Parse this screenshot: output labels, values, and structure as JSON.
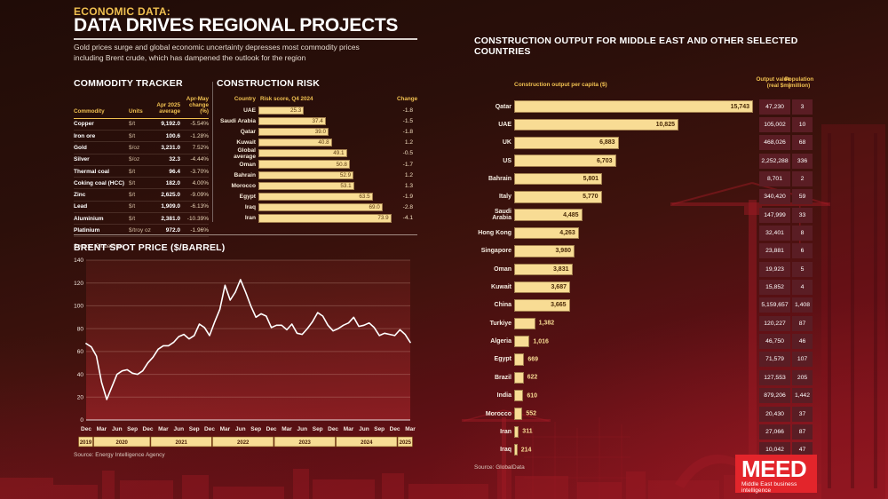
{
  "page": {
    "kicker": "ECONOMIC DATA:",
    "title": "DATA DRIVES REGIONAL PROJECTS",
    "subtitle": "Gold prices surge and global economic uncertainty depresses most commodity prices including Brent crude, which has dampened the outlook for the region"
  },
  "commodity": {
    "title": "COMMODITY TRACKER",
    "columns": [
      "Commodity",
      "Units",
      "Apr 2025\naverage",
      "Apr-May\nchange\n(%)"
    ],
    "rows": [
      [
        "Copper",
        "$/t",
        "9,192.0",
        "-5.54%"
      ],
      [
        "Iron ore",
        "$/t",
        "100.6",
        "-1.28%"
      ],
      [
        "Gold",
        "$/oz",
        "3,231.0",
        "7.52%"
      ],
      [
        "Silver",
        "$/oz",
        "32.3",
        "-4.44%"
      ],
      [
        "Thermal coal",
        "$/t",
        "96.4",
        "-3.70%"
      ],
      [
        "Coking coal (HCC)",
        "$/t",
        "182.0",
        "4.00%"
      ],
      [
        "Zinc",
        "$/t",
        "2,625.0",
        "-9.09%"
      ],
      [
        "Lead",
        "$/t",
        "1,909.0",
        "-6.13%"
      ],
      [
        "Aluminium",
        "$/t",
        "2,381.0",
        "-10.39%"
      ],
      [
        "Platinium",
        "$/troy oz",
        "972.0",
        "-1.96%"
      ]
    ],
    "source": "Source: GlobalData"
  },
  "chart_data": [
    {
      "id": "construction_risk",
      "type": "bar",
      "orientation": "horizontal",
      "title": "CONSTRUCTION RISK",
      "col_country": "Country",
      "col_score": "Risk score, Q4 2024",
      "col_change": "Change",
      "categories": [
        "UAE",
        "Saudi Arabia",
        "Qatar",
        "Kuwait",
        "Global average",
        "Oman",
        "Bahrain",
        "Morocco",
        "Egypt",
        "Iraq",
        "Iran"
      ],
      "values": [
        25.3,
        37.4,
        39.0,
        40.8,
        49.1,
        50.8,
        52.9,
        53.1,
        63.5,
        69.0,
        73.9
      ],
      "value_labels": [
        "25.3",
        "37.4",
        "39.0",
        "40.8",
        "49.1",
        "50.8",
        "52.9",
        "53.1",
        "63.5",
        "69.0",
        "73.9"
      ],
      "change": [
        -1.8,
        -1.5,
        -1.8,
        1.2,
        -0.5,
        -1.7,
        1.2,
        1.3,
        -1.9,
        -2.8,
        -4.1
      ],
      "change_labels": [
        "-1.8",
        "-1.5",
        "-1.8",
        "1.2",
        "-0.5",
        "-1.7",
        "1.2",
        "1.3",
        "-1.9",
        "-2.8",
        "-4.1"
      ],
      "xlim": [
        0,
        76
      ]
    },
    {
      "id": "brent_spot_price",
      "type": "line",
      "title": "BRENT SPOT PRICE ($/BARREL)",
      "ylim": [
        0,
        140
      ],
      "yticks": [
        "0",
        "20",
        "40",
        "60",
        "80",
        "100",
        "120",
        "140"
      ],
      "x_range": "Dec 2019 - Mar 2025 (monthly)",
      "month_tick_labels": [
        "Dec",
        "Mar",
        "Jun",
        "Sep",
        "Dec",
        "Mar",
        "Jun",
        "Sep",
        "Dec",
        "Mar",
        "Jun",
        "Sep",
        "Dec",
        "Mar",
        "Jun",
        "Sep",
        "Dec",
        "Mar",
        "Jun",
        "Sep",
        "Dec",
        "Mar"
      ],
      "year_bands": [
        "2019",
        "2020",
        "2021",
        "2022",
        "2023",
        "2024",
        "2025"
      ],
      "values": [
        67,
        64,
        56,
        33,
        18,
        29,
        40,
        43,
        44,
        41,
        40,
        43,
        50,
        55,
        62,
        65,
        65,
        68,
        73,
        75,
        71,
        74,
        84,
        81,
        74,
        86,
        97,
        118,
        105,
        112,
        123,
        112,
        100,
        90,
        93,
        91,
        81,
        83,
        83,
        79,
        84,
        76,
        75,
        80,
        86,
        94,
        91,
        83,
        78,
        80,
        83,
        85,
        90,
        82,
        83,
        85,
        81,
        74,
        76,
        75,
        74,
        79,
        75,
        68
      ],
      "grid": true,
      "source": "Source: Energy Intelligence Agency"
    },
    {
      "id": "construction_output",
      "type": "bar",
      "orientation": "horizontal",
      "title": "CONSTRUCTION OUTPUT FOR MIDDLE EAST AND OTHER SELECTED COUNTRIES",
      "col_bar": "Construction output per capita ($)",
      "col_output": "Output value\n(real $m)",
      "col_pop": "Population\n(million)",
      "categories": [
        "Qatar",
        "UAE",
        "UK",
        "US",
        "Bahrain",
        "Italy",
        "Saudi Arabia",
        "Hong Kong",
        "Singapore",
        "Oman",
        "Kuwait",
        "China",
        "Turkiye",
        "Algeria",
        "Egypt",
        "Brazil",
        "India",
        "Morocco",
        "Iran",
        "Iraq"
      ],
      "values": [
        15743,
        10825,
        6883,
        6703,
        5801,
        5770,
        4485,
        4263,
        3980,
        3831,
        3687,
        3665,
        1382,
        1016,
        669,
        622,
        610,
        552,
        311,
        214
      ],
      "value_labels": [
        "15,743",
        "10,825",
        "6,883",
        "6,703",
        "5,801",
        "5,770",
        "4,485",
        "4,263",
        "3,980",
        "3,831",
        "3,687",
        "3,665",
        "1,382",
        "1,016",
        "669",
        "622",
        "610",
        "552",
        "311",
        "214"
      ],
      "output_value": [
        "47,230",
        "105,002",
        "468,026",
        "2,252,288",
        "8,701",
        "340,420",
        "147,999",
        "32,401",
        "23,881",
        "19,923",
        "15,852",
        "5,159,657",
        "120,227",
        "46,750",
        "71,579",
        "127,553",
        "879,206",
        "20,430",
        "27,066",
        "10,042"
      ],
      "population": [
        "3",
        "10",
        "68",
        "336",
        "2",
        "59",
        "33",
        "8",
        "6",
        "5",
        "4",
        "1,408",
        "87",
        "46",
        "107",
        "205",
        "1,442",
        "37",
        "87",
        "47"
      ],
      "xlim": [
        0,
        15743
      ],
      "source": "Source: GlobalData"
    }
  ],
  "logo": {
    "name": "MEED",
    "tagline": "Middle East business intelligence"
  },
  "colors": {
    "bar_fill": "#f8dc94",
    "accent_yellow": "#f0c050",
    "strip_maroon": "#5a1d24",
    "logo_red": "#e3252b",
    "line_white": "#ffffff"
  }
}
